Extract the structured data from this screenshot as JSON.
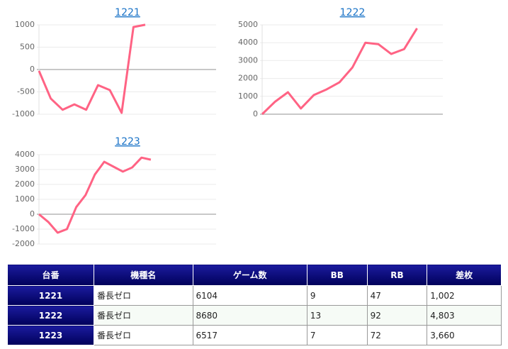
{
  "chart_data": [
    {
      "type": "line",
      "title": "1221",
      "color": "#ff6384",
      "values": [
        -30,
        -650,
        -900,
        -780,
        -900,
        -350,
        -460,
        -970,
        950,
        1002
      ],
      "ylim": [
        -1000,
        1000
      ],
      "yticks": [
        1000,
        500,
        0,
        -500,
        -1000
      ],
      "grid": true
    },
    {
      "type": "line",
      "title": "1222",
      "color": "#ff6384",
      "values": [
        0,
        700,
        1230,
        320,
        1070,
        1390,
        1790,
        2620,
        4000,
        3920,
        3370,
        3640,
        4803
      ],
      "ylim": [
        0,
        5000
      ],
      "yticks": [
        5000,
        4000,
        3000,
        2000,
        1000,
        0
      ],
      "grid": true
    },
    {
      "type": "line",
      "title": "1223",
      "color": "#ff6384",
      "values": [
        0,
        -520,
        -1240,
        -1000,
        480,
        1290,
        2670,
        3520,
        3190,
        2860,
        3140,
        3800,
        3660
      ],
      "ylim": [
        -2000,
        4000
      ],
      "yticks": [
        4000,
        3000,
        2000,
        1000,
        0,
        -1000,
        -2000
      ],
      "grid": true
    }
  ],
  "table": {
    "header": [
      "台番",
      "機種名",
      "ゲーム数",
      "BB",
      "RB",
      "差枚"
    ],
    "rows": [
      [
        "1221",
        "番長ゼロ",
        "6104",
        "9",
        "47",
        "1,002"
      ],
      [
        "1222",
        "番長ゼロ",
        "8680",
        "13",
        "92",
        "4,803"
      ],
      [
        "1223",
        "番長ゼロ",
        "6517",
        "7",
        "72",
        "3,660"
      ]
    ]
  }
}
